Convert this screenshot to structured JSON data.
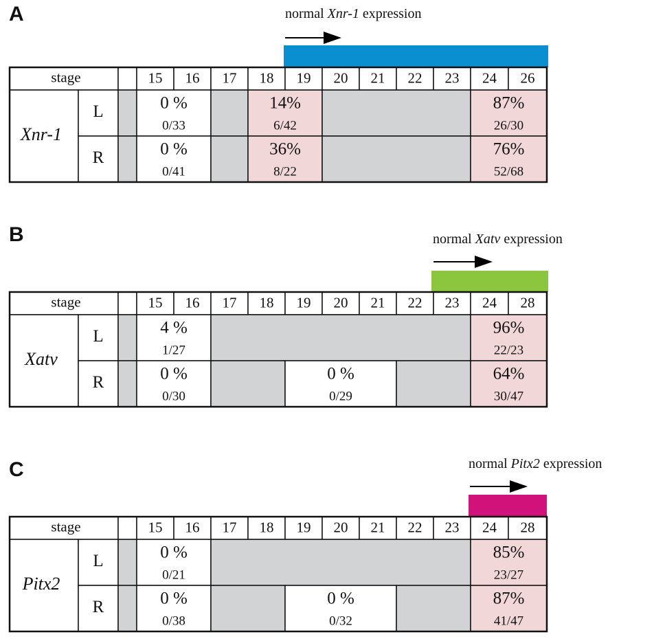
{
  "panels": [
    {
      "label": "A",
      "caption": {
        "prefix": "normal",
        "gene": "Xnr-1",
        "suffix": "expression"
      },
      "table": {
        "stage_header": "stage",
        "stages": [
          15,
          16,
          17,
          18,
          19,
          20,
          21,
          22,
          23,
          24,
          26
        ],
        "gene": "Xnr-1",
        "rows": [
          {
            "side": "L",
            "cells": [
              {
                "percent": "0 %",
                "fraction": "0/33"
              },
              {
                "percent": "14%",
                "fraction": "6/42"
              },
              {
                "percent": "87%",
                "fraction": "26/30"
              }
            ]
          },
          {
            "side": "R",
            "cells": [
              {
                "percent": "0 %",
                "fraction": "0/41"
              },
              {
                "percent": "36%",
                "fraction": "8/22"
              },
              {
                "percent": "76%",
                "fraction": "52/68"
              }
            ]
          }
        ]
      }
    },
    {
      "label": "B",
      "caption": {
        "prefix": "normal",
        "gene": "Xatv",
        "suffix": "expression"
      },
      "table": {
        "stage_header": "stage",
        "stages": [
          15,
          16,
          17,
          18,
          19,
          20,
          21,
          22,
          23,
          24,
          28
        ],
        "gene": "Xatv",
        "rows": [
          {
            "side": "L",
            "cells": [
              {
                "percent": "4 %",
                "fraction": "1/27"
              },
              {
                "percent": "96%",
                "fraction": "22/23"
              }
            ]
          },
          {
            "side": "R",
            "cells": [
              {
                "percent": "0 %",
                "fraction": "0/30"
              },
              {
                "percent": "0 %",
                "fraction": "0/29"
              },
              {
                "percent": "64%",
                "fraction": "30/47"
              }
            ]
          }
        ]
      }
    },
    {
      "label": "C",
      "caption": {
        "prefix": "normal",
        "gene": "Pitx2",
        "suffix": "expression"
      },
      "table": {
        "stage_header": "stage",
        "stages": [
          15,
          16,
          17,
          18,
          19,
          20,
          21,
          22,
          23,
          24,
          28
        ],
        "gene": "Pitx2",
        "rows": [
          {
            "side": "L",
            "cells": [
              {
                "percent": "0 %",
                "fraction": "0/21"
              },
              {
                "percent": "85%",
                "fraction": "23/27"
              }
            ]
          },
          {
            "side": "R",
            "cells": [
              {
                "percent": "0 %",
                "fraction": "0/38"
              },
              {
                "percent": "0 %",
                "fraction": "0/32"
              },
              {
                "percent": "87%",
                "fraction": "41/47"
              }
            ]
          }
        ]
      }
    }
  ]
}
